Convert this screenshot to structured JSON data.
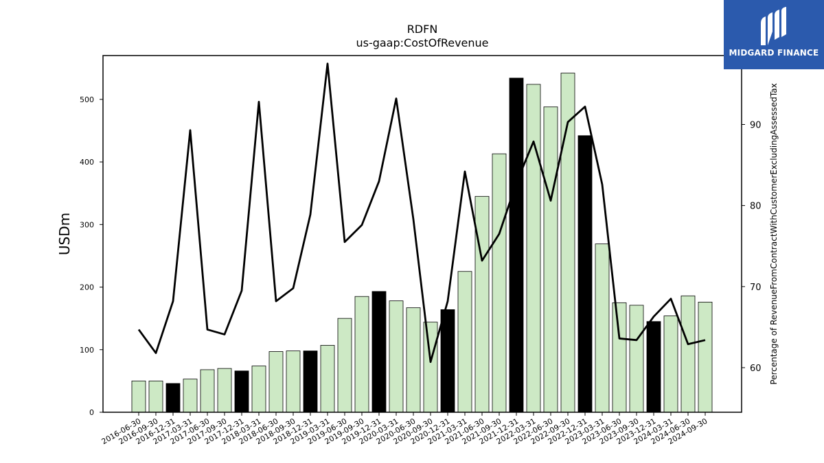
{
  "chart_data": {
    "type": "bar",
    "title": "RDFN",
    "subtitle": "us-gaap:CostOfRevenue",
    "ylabel": "USDm",
    "y2label": "Percentage of RevenueFromContractWithCustomerExcludingAssessedTax",
    "ylim": [
      0,
      570
    ],
    "y2lim": [
      54.5,
      98.5
    ],
    "yticks": [
      0,
      100,
      200,
      300,
      400,
      500
    ],
    "y2ticks": [
      60,
      70,
      80,
      90
    ],
    "categories": [
      "2016-06-30",
      "2016-09-30",
      "2016-12-31",
      "2017-03-31",
      "2017-06-30",
      "2017-09-30",
      "2017-12-31",
      "2018-03-31",
      "2018-06-30",
      "2018-09-30",
      "2018-12-31",
      "2019-03-31",
      "2019-06-30",
      "2019-09-30",
      "2019-12-31",
      "2020-03-31",
      "2020-06-30",
      "2020-09-30",
      "2020-12-31",
      "2021-03-31",
      "2021-06-30",
      "2021-09-30",
      "2021-12-31",
      "2022-03-31",
      "2022-06-30",
      "2022-09-30",
      "2022-12-31",
      "2023-03-31",
      "2023-06-30",
      "2023-09-30",
      "2023-12-31",
      "2024-03-31",
      "2024-06-30",
      "2024-09-30"
    ],
    "series": [
      {
        "kind": "bar",
        "values": [
          50,
          50,
          46,
          53,
          68,
          70,
          66,
          74,
          97,
          98,
          98,
          107,
          150,
          185,
          193,
          178,
          167,
          144,
          164,
          225,
          345,
          413,
          534,
          524,
          488,
          542,
          442,
          269,
          175,
          171,
          145,
          154,
          186,
          176
        ],
        "colors": [
          "#cde9c5",
          "#cde9c5",
          "#000000",
          "#cde9c5",
          "#cde9c5",
          "#cde9c5",
          "#000000",
          "#cde9c5",
          "#cde9c5",
          "#cde9c5",
          "#000000",
          "#cde9c5",
          "#cde9c5",
          "#cde9c5",
          "#000000",
          "#cde9c5",
          "#cde9c5",
          "#cde9c5",
          "#000000",
          "#cde9c5",
          "#cde9c5",
          "#cde9c5",
          "#000000",
          "#cde9c5",
          "#cde9c5",
          "#cde9c5",
          "#000000",
          "#cde9c5",
          "#cde9c5",
          "#cde9c5",
          "#000000",
          "#cde9c5",
          "#cde9c5",
          "#cde9c5"
        ]
      },
      {
        "kind": "line",
        "axis": "right",
        "color": "#000000",
        "values": [
          64.7,
          61.8,
          68.2,
          89.3,
          64.7,
          64.1,
          69.5,
          92.8,
          68.2,
          69.8,
          78.9,
          97.5,
          75.5,
          77.6,
          83.0,
          93.2,
          78.3,
          60.7,
          68.2,
          84.2,
          73.2,
          76.5,
          82.8,
          87.9,
          80.6,
          90.3,
          92.2,
          82.6,
          63.6,
          63.4,
          66.3,
          68.5,
          62.9,
          63.4
        ]
      }
    ],
    "grid": false,
    "legend": "none"
  },
  "logo": {
    "text": "MIDGARD FINANCE",
    "icon": "midgard-logo-icon",
    "color": "#2b5aad"
  }
}
